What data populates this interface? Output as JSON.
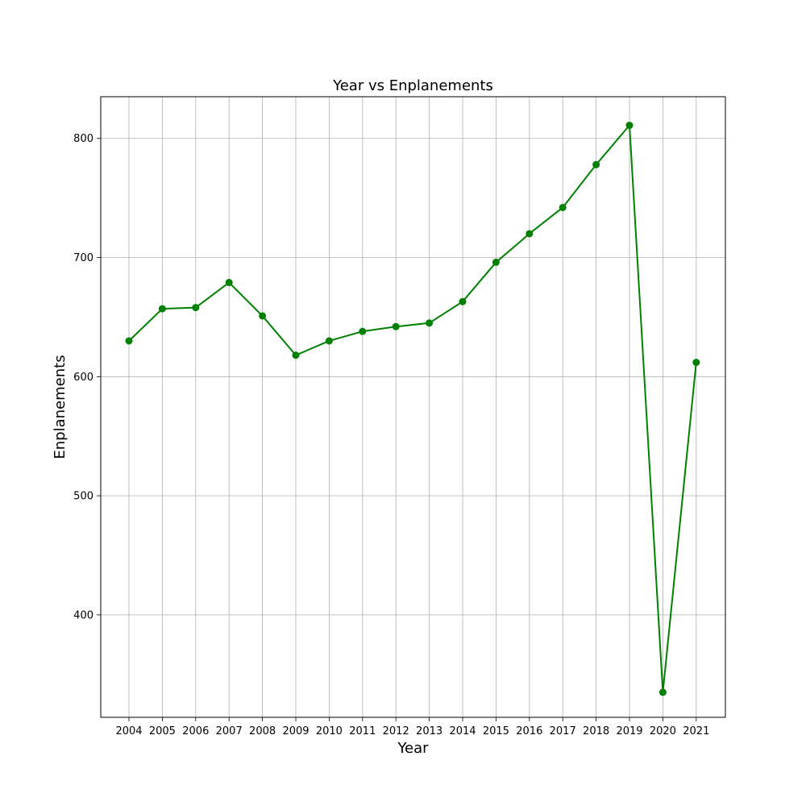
{
  "chart_data": {
    "type": "line",
    "title": "Year vs Enplanements",
    "xlabel": "Year",
    "ylabel": "Enplanements",
    "x": [
      "2004",
      "2005",
      "2006",
      "2007",
      "2008",
      "2009",
      "2010",
      "2011",
      "2012",
      "2013",
      "2014",
      "2015",
      "2016",
      "2017",
      "2018",
      "2019",
      "2020",
      "2021"
    ],
    "series": [
      {
        "values": [
          630,
          657,
          658,
          679,
          651,
          618,
          630,
          638,
          642,
          645,
          663,
          696,
          720,
          742,
          778,
          811,
          335,
          612
        ]
      }
    ],
    "ylim": [
      314,
      835
    ],
    "yticks": [
      400,
      500,
      600,
      700,
      800
    ],
    "grid": true,
    "color": "#008000",
    "marker": "circle"
  }
}
